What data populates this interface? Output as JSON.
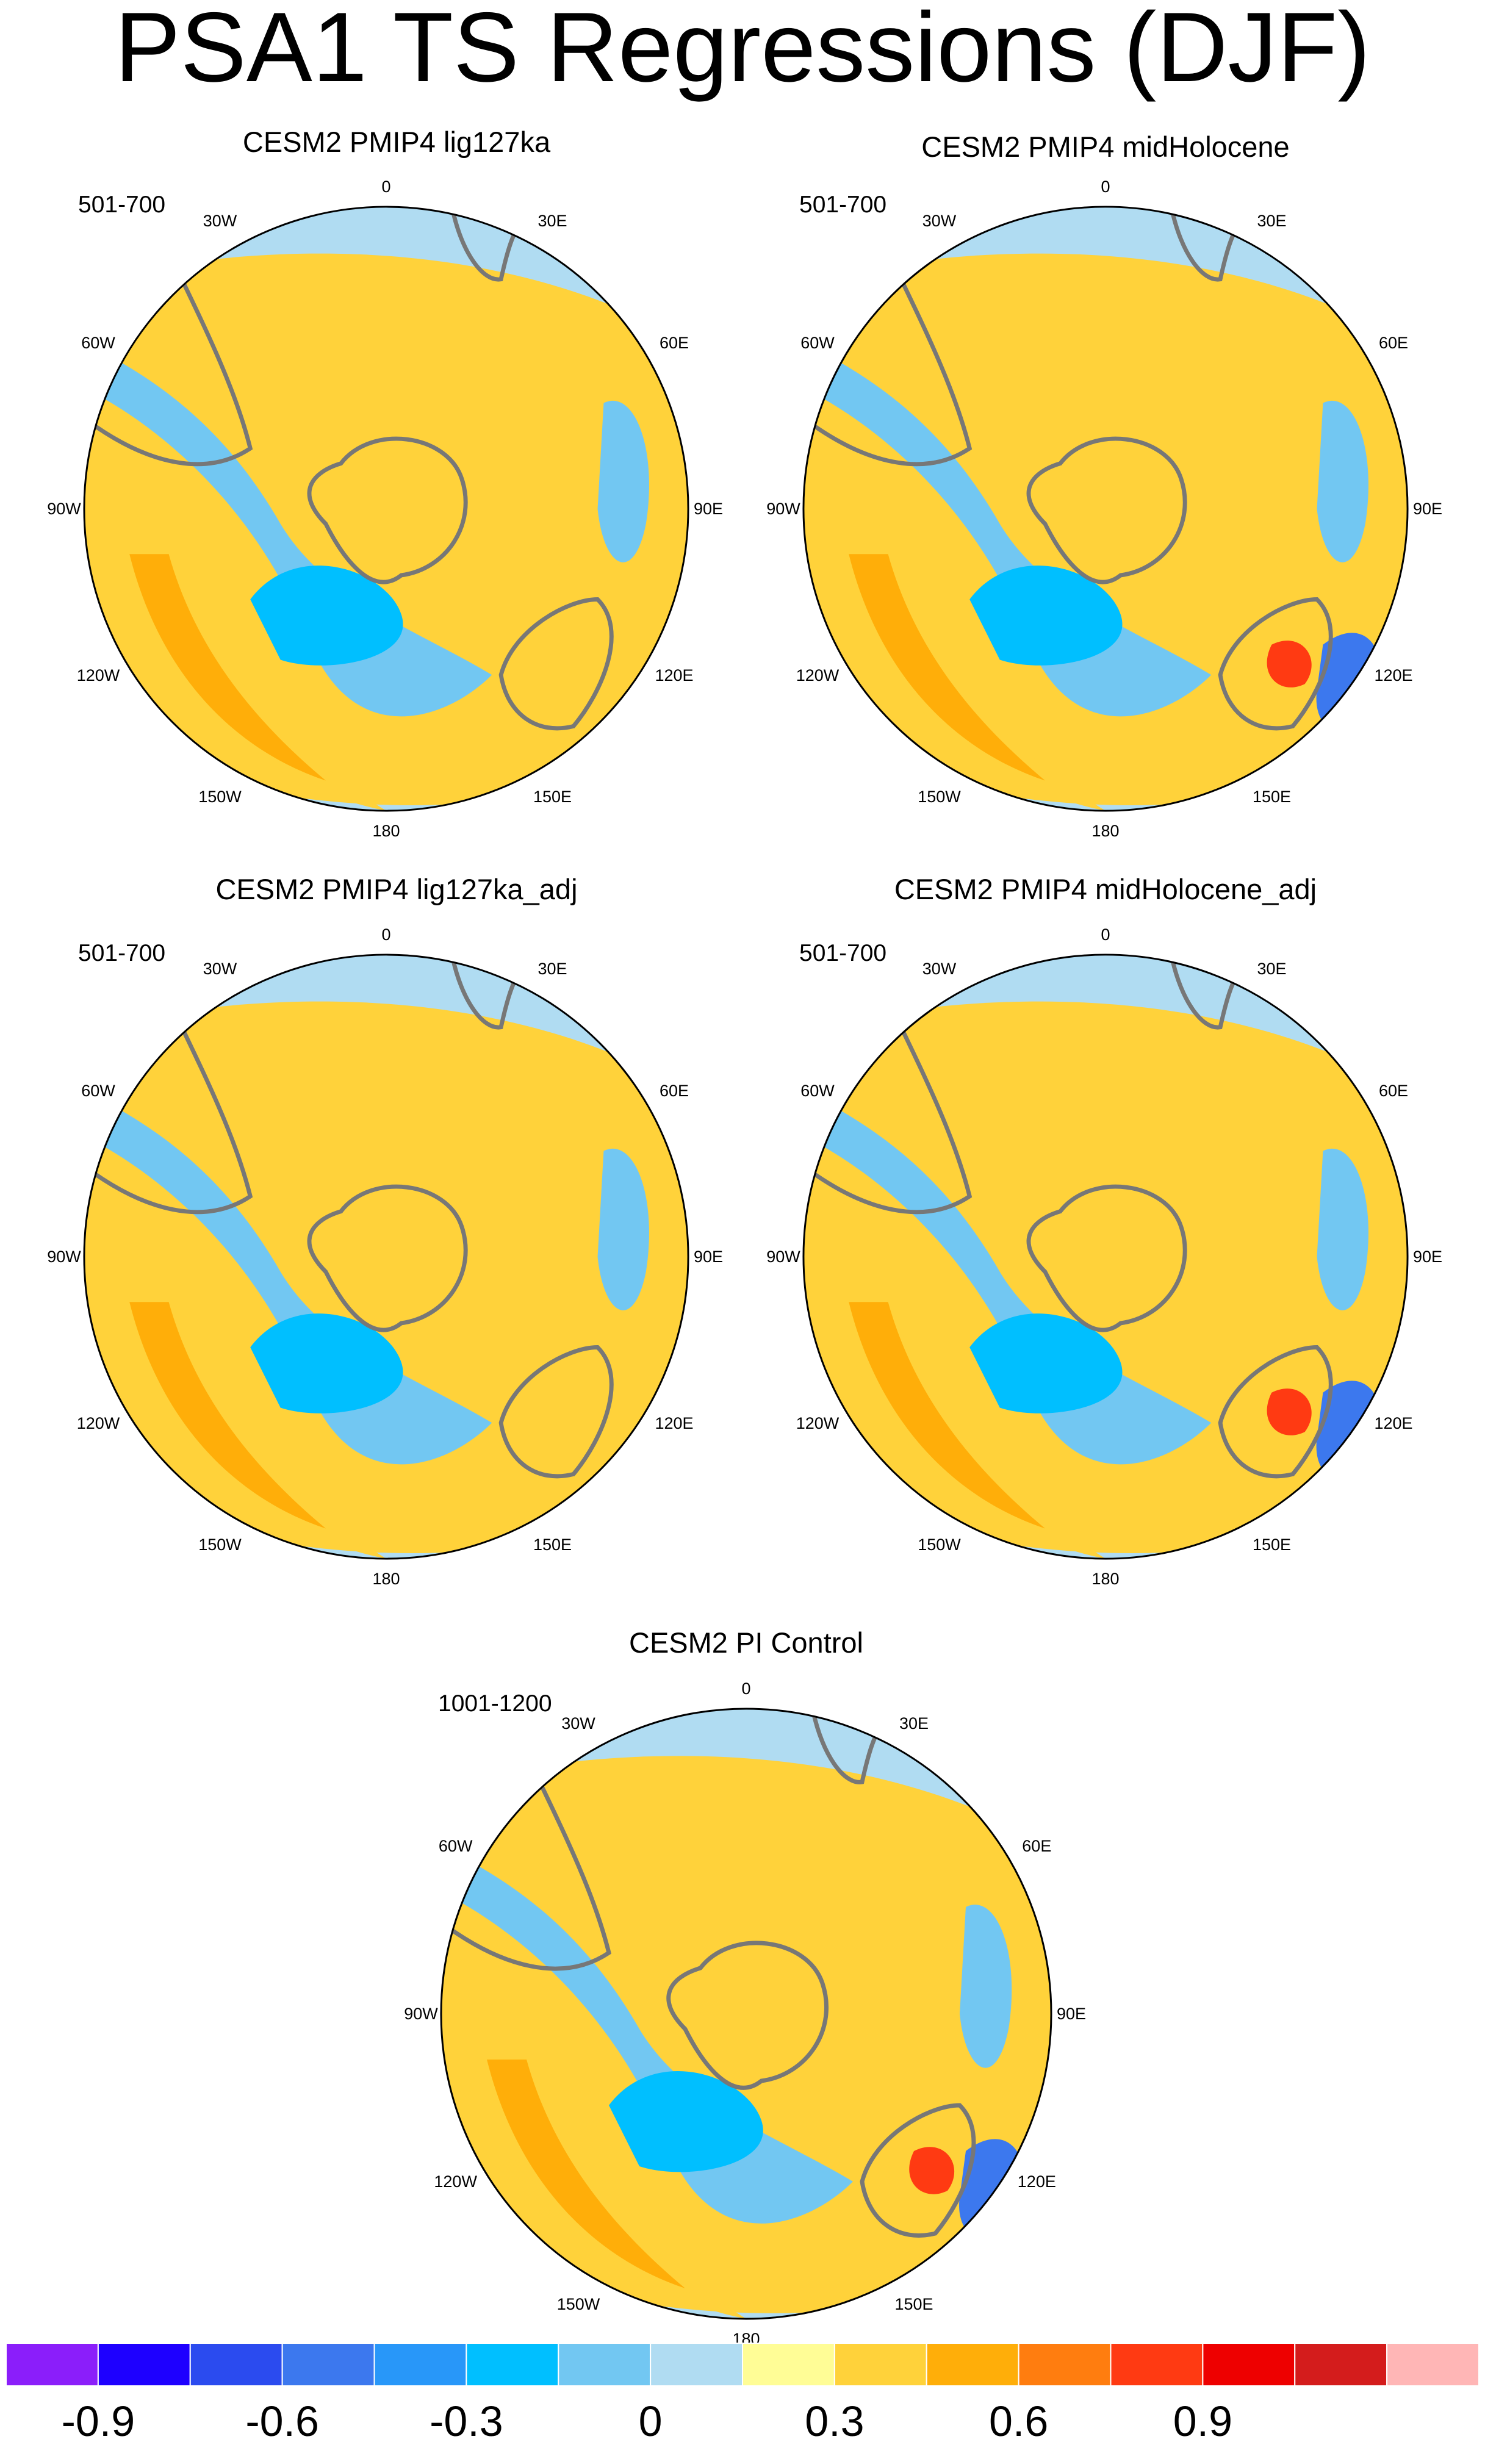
{
  "title": "PSA1 TS Regressions (DJF)",
  "panels": [
    {
      "id": "lig127ka",
      "title": "CESM2 PMIP4 lig127ka",
      "period": "501-700",
      "variant": "lig"
    },
    {
      "id": "midHolocene",
      "title": "CESM2 PMIP4 midHolocene",
      "period": "501-700",
      "variant": "mh"
    },
    {
      "id": "lig127ka_adj",
      "title": "CESM2 PMIP4 lig127ka_adj",
      "period": "501-700",
      "variant": "lig"
    },
    {
      "id": "midHolocene_adj",
      "title": "CESM2 PMIP4 midHolocene_adj",
      "period": "501-700",
      "variant": "mh"
    },
    {
      "id": "pi_control",
      "title": "CESM2 PI Control",
      "period": "1001-1200",
      "variant": "pi"
    }
  ],
  "longitude_labels": [
    "0",
    "30E",
    "60E",
    "90E",
    "120E",
    "150E",
    "180",
    "150W",
    "120W",
    "90W",
    "60W",
    "30W"
  ],
  "colorbar": {
    "colors": [
      "#8b1efa",
      "#1e00ff",
      "#2b4bef",
      "#3c78ee",
      "#2897f9",
      "#00bfff",
      "#72c7f2",
      "#b0dcf2",
      "#fffd96",
      "#ffd23a",
      "#ffae09",
      "#ff7d0f",
      "#ff3a12",
      "#ee0000",
      "#d41c1c",
      "#ffb6b6"
    ],
    "labels": [
      "-0.9",
      "-0.6",
      "-0.3",
      "0",
      "0.3",
      "0.6",
      "0.9"
    ]
  }
}
